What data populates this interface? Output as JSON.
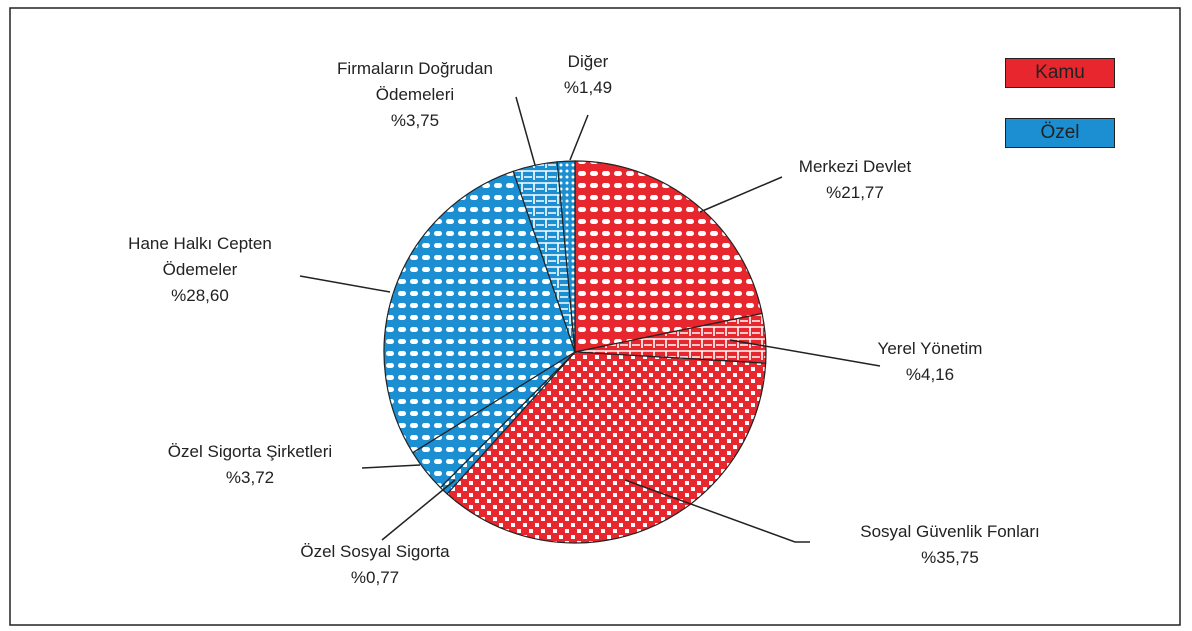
{
  "chart_data": {
    "type": "pie",
    "categories": [
      "Merkezi Devlet",
      "Yerel Yönetim",
      "Sosyal Güvenlik Fonları",
      "Özel Sosyal Sigorta",
      "Özel Sigorta Şirketleri",
      "Hane Halkı Cepten Ödemeler",
      "Firmaların Doğrudan Ödemeleri",
      "Diğer"
    ],
    "values": [
      21.77,
      4.16,
      35.75,
      0.77,
      3.72,
      28.6,
      3.75,
      1.49
    ],
    "value_labels": [
      "%21,77",
      "%4,16",
      "%35,75",
      "%0,77",
      "%3,72",
      "%28,60",
      "%3,75",
      "%1,49"
    ],
    "colors": [
      "#e8262d",
      "#e8262d",
      "#e8262d",
      "#1b8fd2",
      "#1b8fd2",
      "#1b8fd2",
      "#1b8fd2",
      "#1b8fd2"
    ],
    "legend": [
      {
        "name": "Kamu",
        "color": "#e8262d"
      },
      {
        "name": "Özel",
        "color": "#1b8fd2"
      }
    ]
  }
}
